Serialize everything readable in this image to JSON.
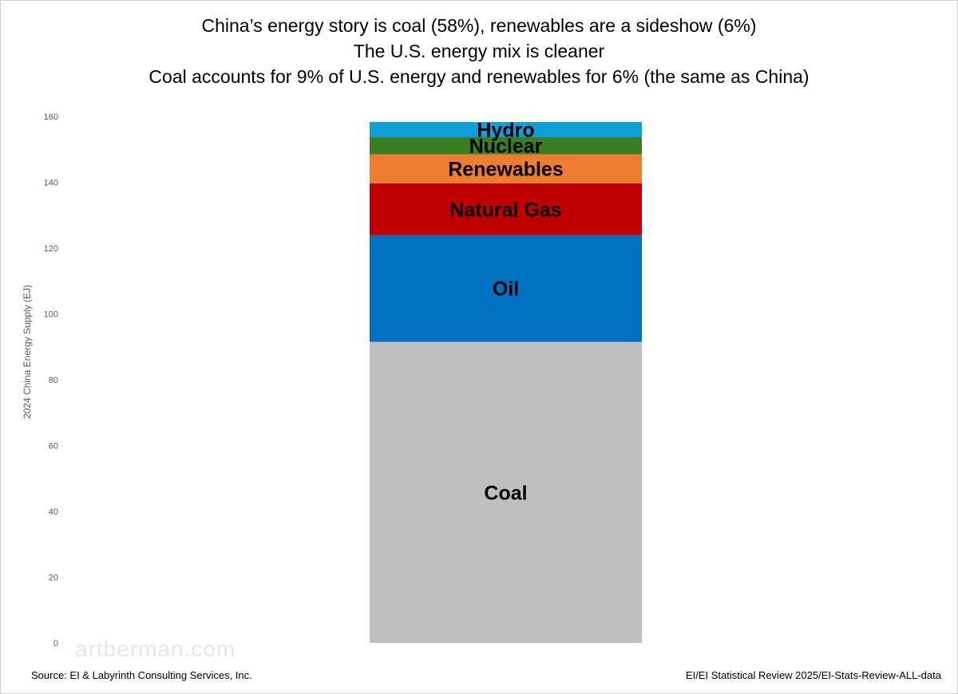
{
  "chart_data": {
    "type": "bar",
    "stacked": true,
    "title_lines": [
      "China’s energy story is coal (58%), renewables are a sideshow (6%)",
      "The U.S. energy mix is cleaner",
      "Coal accounts for 9% of U.S. energy and renewables for 6% (the same as China)"
    ],
    "xlabel": "",
    "ylabel": "2024 China Energy Supply (EJ)",
    "ylim": [
      0,
      160
    ],
    "yticks": [
      0,
      20,
      40,
      60,
      80,
      100,
      120,
      140,
      160
    ],
    "grid": false,
    "categories": [
      ""
    ],
    "series": [
      {
        "name": "Coal",
        "values": [
          91.5
        ],
        "color": "#bfbfbf"
      },
      {
        "name": "Oil",
        "values": [
          32.4
        ],
        "color": "#0070c0"
      },
      {
        "name": "Natural Gas",
        "values": [
          15.8
        ],
        "color": "#c00000"
      },
      {
        "name": "Renewables",
        "values": [
          8.8
        ],
        "color": "#ed7d31"
      },
      {
        "name": "Nuclear",
        "values": [
          5.2
        ],
        "color": "#3a7d22"
      },
      {
        "name": "Hydro",
        "values": [
          4.6
        ],
        "color": "#0f9ed5"
      }
    ]
  },
  "watermark": "artberman.com",
  "footer": {
    "source": "Source:  EI & Labyrinth Consulting Services, Inc.",
    "reference": "EI/EI Statistical Review 2025/EI-Stats-Review-ALL-data"
  }
}
